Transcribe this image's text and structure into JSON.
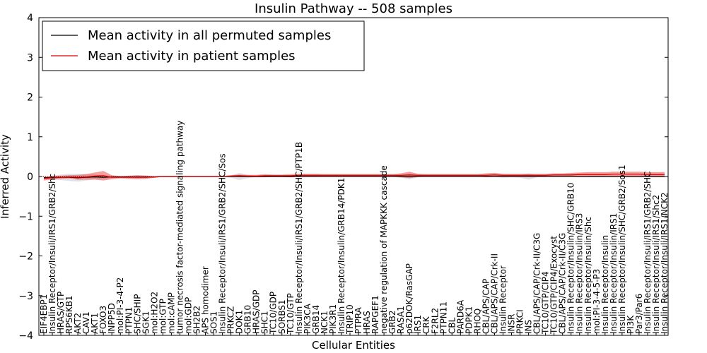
{
  "chart_data": {
    "type": "line",
    "title": "Insulin Pathway -- 508 samples",
    "xlabel": "Cellular Entities",
    "ylabel": "Inferred Activity",
    "ylim": [
      -4,
      4
    ],
    "yticks": [
      -4,
      -3,
      -2,
      -1,
      0,
      1,
      2,
      3,
      4
    ],
    "ytick_labels": [
      "−4",
      "−3",
      "−2",
      "−1",
      "0",
      "1",
      "2",
      "3",
      "4"
    ],
    "legend_position": "top-left",
    "categories": [
      "EIF4EBP1",
      "Insulin Receptor/Insuli/IRS1/GRB2/Shc",
      "HRAS/GTP",
      "RPS6KB1",
      "AKT2",
      "CAV1",
      "AKT1",
      "FOXO3",
      "INPP5D",
      "mol:PI-3-4-P2",
      "PTPN1",
      "SHC/SHIP",
      "SGK1",
      "mol:H2O2",
      "mol:GTP",
      "mol:cAMP",
      "tumor necrosis factor-mediated signaling pathway",
      "mol:GDP",
      "SH2B2",
      "APS homodimer",
      "SOS1",
      "Insulin Receptor/Insuli/IRS1/GRB2/SHC/Sos",
      "PRKCZ",
      "DOK1",
      "GRB10",
      "HRAS/GDP",
      "SHC1",
      "TC10/GDP",
      "SORBS1",
      "TC10/GTP",
      "Insulin Receptor/Insuli/IRS1/GRB2/SHC/PTP1B",
      "PIK3CA",
      "GRB14",
      "NCK1",
      "PIK3R1",
      "Insulin Receptor/Insulin/GRB14/PDK1",
      "TRIP10",
      "PTPRA",
      "HRAS",
      "RAPGEF1",
      "negative regulation of MAPKKK cascade",
      "GRB2",
      "RASA1",
      "p62DOK/RasGAP",
      "IRS1",
      "CRK",
      "F2RL2",
      "PTPN11",
      "CBL",
      "PARD6A",
      "PDPK1",
      "RHOQ",
      "CBL/APS/CAP",
      "CBL/APS/CAP/Crk-II",
      "Insulin Receptor",
      "INSR",
      "PRKCI",
      "INS",
      "CBL/APS/CAP/Crk-II/C3G",
      "TC10/GTP/CIP4",
      "TC10/GTP/CIP4/Exocyst",
      "CBL/APS/CAP/Crk-II/C3G",
      "Insulin Receptor/Insulin/SHC/GRB10",
      "Insulin Receptor/Insulin/IRS3",
      "Insulin Receptor/Insulin/Shc",
      "mol:PI-3-4-5-P3",
      "Insulin Receptor/Insulin",
      "Insulin Receptor/Insulin/IRS1",
      "Insulin Receptor/Insulin/SHC/GRB2/Sos1",
      "PI3K",
      "Par3/Par6",
      "Insulin Receptor/Insuli/IRS1/GRB2/SHC",
      "Insulin Receptor/Insuli/IRS1/Shc2",
      "Insulin Receptor/Insuli/IRS1/NCK2"
    ],
    "series": [
      {
        "name": "Mean activity in all permuted samples",
        "color": "#000000",
        "values": [
          -0.03,
          -0.03,
          -0.02,
          -0.02,
          -0.03,
          -0.02,
          -0.01,
          -0.02,
          -0.01,
          -0.01,
          -0.01,
          -0.01,
          -0.01,
          -0.01,
          0,
          0,
          0,
          0,
          0,
          0,
          0,
          0,
          0,
          0,
          0,
          0,
          0,
          0,
          0,
          0,
          0,
          0,
          0,
          0,
          0,
          0,
          0,
          0,
          0,
          0,
          0,
          0,
          0,
          0,
          0,
          0,
          0,
          0,
          0,
          0,
          0,
          0,
          0,
          0,
          0,
          0,
          0,
          0,
          0,
          0,
          0,
          0,
          0,
          0,
          0,
          0,
          0,
          0,
          0,
          0,
          0,
          0,
          0,
          0
        ],
        "band": [
          0.02,
          0.04,
          0.07,
          0.09,
          0.1,
          0.08,
          0.06,
          0.05,
          0.03,
          0.02,
          0.03,
          0.04,
          0.04,
          0.02,
          0.01,
          0.01,
          0.01,
          0.01,
          0.01,
          0.01,
          0.01,
          0.01,
          0.03,
          0.09,
          0.04,
          0.01,
          0.01,
          0.02,
          0.02,
          0.02,
          0.01,
          0.01,
          0.01,
          0.01,
          0.01,
          0.01,
          0.01,
          0.01,
          0.01,
          0.01,
          0.01,
          0.01,
          0.03,
          0.07,
          0.02,
          0.01,
          0.01,
          0.01,
          0.01,
          0.01,
          0.01,
          0.01,
          0.01,
          0.01,
          0.03,
          0.02,
          0.03,
          0.08,
          0.02,
          0.01,
          0.01,
          0.01,
          0.01,
          0.02,
          0.02,
          0.02,
          0.02,
          0.02,
          0.02,
          0.02,
          0.02,
          0.02,
          0.02,
          0.02
        ]
      },
      {
        "name": "Mean activity in patient samples",
        "color": "#dd0000",
        "values": [
          -0.05,
          -0.03,
          -0.02,
          -0.01,
          -0.02,
          -0.01,
          0.01,
          0.02,
          -0.02,
          -0.02,
          -0.02,
          -0.02,
          -0.02,
          -0.01,
          0,
          0,
          0,
          0,
          0,
          0,
          0,
          0,
          0.01,
          0.02,
          0.01,
          0.01,
          0.02,
          0.02,
          0.02,
          0.02,
          0.03,
          0.03,
          0.03,
          0.03,
          0.03,
          0.03,
          0.03,
          0.03,
          0.03,
          0.03,
          0.03,
          0.03,
          0.03,
          0.04,
          0.03,
          0.03,
          0.03,
          0.03,
          0.03,
          0.03,
          0.03,
          0.03,
          0.03,
          0.04,
          0.03,
          0.03,
          0.03,
          0.03,
          0.03,
          0.03,
          0.04,
          0.04,
          0.04,
          0.05,
          0.05,
          0.05,
          0.05,
          0.06,
          0.06,
          0.06,
          0.06,
          0.05,
          0.05,
          0.05
        ],
        "band": [
          0.05,
          0.05,
          0.04,
          0.04,
          0.06,
          0.07,
          0.09,
          0.12,
          0.05,
          0.03,
          0.04,
          0.05,
          0.04,
          0.02,
          0.01,
          0.01,
          0.01,
          0.01,
          0.01,
          0.01,
          0.01,
          0.01,
          0.02,
          0.03,
          0.03,
          0.03,
          0.04,
          0.03,
          0.03,
          0.04,
          0.04,
          0.04,
          0.04,
          0.03,
          0.03,
          0.03,
          0.03,
          0.03,
          0.03,
          0.03,
          0.03,
          0.03,
          0.05,
          0.08,
          0.04,
          0.03,
          0.03,
          0.03,
          0.03,
          0.03,
          0.03,
          0.03,
          0.05,
          0.05,
          0.04,
          0.04,
          0.04,
          0.04,
          0.04,
          0.04,
          0.04,
          0.04,
          0.05,
          0.05,
          0.06,
          0.06,
          0.06,
          0.06,
          0.06,
          0.06,
          0.06,
          0.06,
          0.06,
          0.06
        ]
      }
    ]
  }
}
